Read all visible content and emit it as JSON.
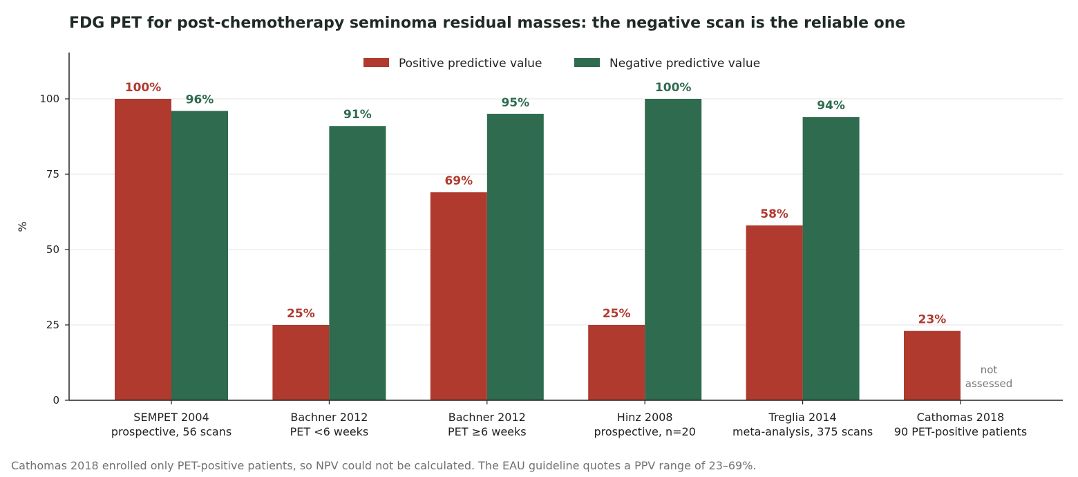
{
  "chart_data": {
    "type": "bar",
    "title": "FDG PET for post-chemotherapy seminoma residual masses: the negative scan is the reliable one",
    "ylabel": "%",
    "xlabel": "",
    "ylim": [
      0,
      115
    ],
    "yticks": [
      0,
      25,
      50,
      75,
      100
    ],
    "grid": "horizontal",
    "legend_placement": "top-center",
    "categories": [
      [
        "SEMPET 2004",
        "prospective, 56 scans"
      ],
      [
        "Bachner 2012",
        "PET <6 weeks"
      ],
      [
        "Bachner 2012",
        "PET ≥6 weeks"
      ],
      [
        "Hinz 2008",
        "prospective, n=20"
      ],
      [
        "Treglia 2014",
        "meta-analysis, 375 scans"
      ],
      [
        "Cathomas 2018",
        "90 PET-positive patients"
      ]
    ],
    "series": [
      {
        "name": "Positive predictive value",
        "color": "#b03a2e",
        "values": [
          100,
          25,
          69,
          25,
          58,
          23
        ],
        "labels": [
          "100%",
          "25%",
          "69%",
          "25%",
          "58%",
          "23%"
        ]
      },
      {
        "name": "Negative predictive value",
        "color": "#2e6b4f",
        "values": [
          96,
          91,
          95,
          100,
          94,
          null
        ],
        "labels": [
          "96%",
          "91%",
          "95%",
          "100%",
          "94%",
          null
        ]
      }
    ],
    "missing_label": [
      "not",
      "assessed"
    ],
    "footnote": "Cathomas 2018 enrolled only PET-positive patients, so NPV could not be calculated. The EAU guideline quotes a PPV range of 23–69%."
  }
}
